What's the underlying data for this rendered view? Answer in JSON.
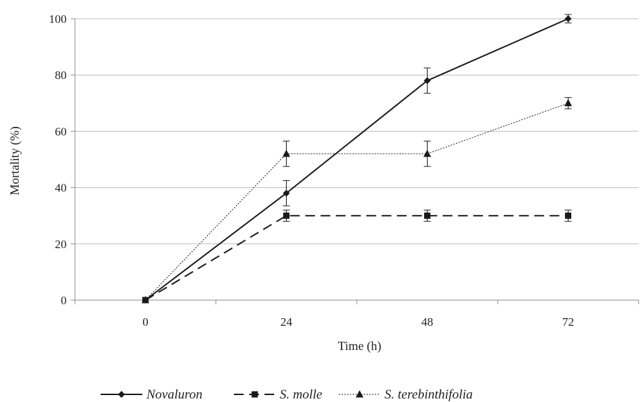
{
  "chart_data": {
    "type": "line",
    "title": "",
    "xlabel": "Time (h)",
    "ylabel": "Mortality (%)",
    "x": [
      0,
      24,
      48,
      72
    ],
    "xticks": [
      "0",
      "24",
      "48",
      "72"
    ],
    "yticks": [
      "0",
      "20",
      "40",
      "60",
      "80",
      "100"
    ],
    "ylim": [
      0,
      100
    ],
    "grid": "horizontal",
    "legend_position": "bottom",
    "series": [
      {
        "name": "Novaluron",
        "values": [
          0,
          38,
          78,
          100
        ],
        "errors": [
          0,
          4.5,
          4.5,
          1.5
        ],
        "line_style": "solid",
        "marker": "diamond",
        "color": "#1a1a1a"
      },
      {
        "name": "S. molle",
        "values": [
          0,
          30,
          30,
          30
        ],
        "errors": [
          0,
          2,
          2,
          2
        ],
        "line_style": "dashed",
        "marker": "square",
        "color": "#1a1a1a"
      },
      {
        "name": "S. terebinthifolia",
        "values": [
          0,
          52,
          52,
          70
        ],
        "errors": [
          0,
          4.5,
          4.5,
          2
        ],
        "line_style": "dotted",
        "marker": "triangle",
        "color": "#1a1a1a"
      }
    ]
  }
}
